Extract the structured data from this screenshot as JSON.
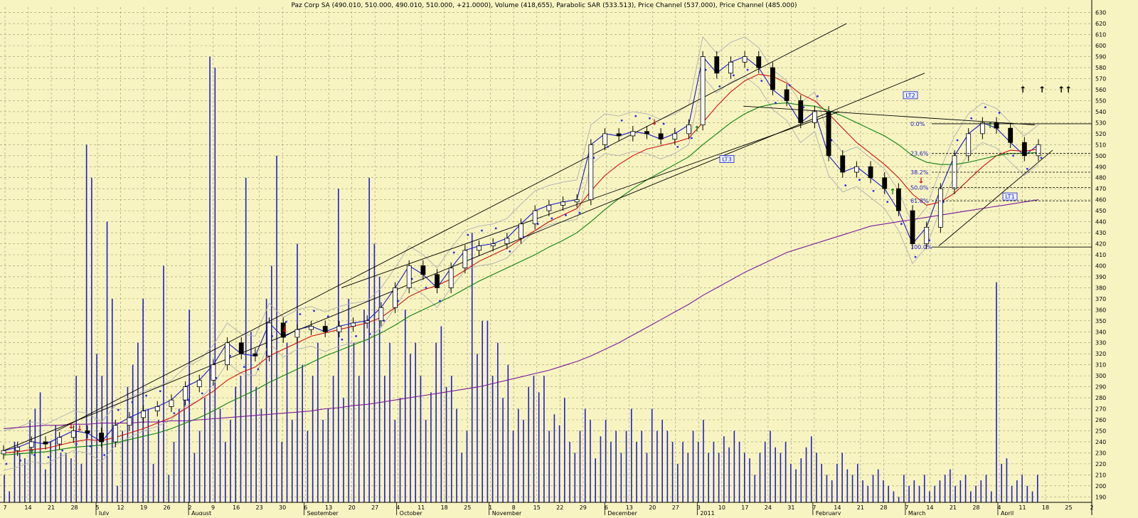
{
  "colors": {
    "background": "#f7f4c2",
    "grid": "#9a9a6a",
    "volume": "#2020c8",
    "price_line": "#1a1ac8",
    "ma_short": "#d01010",
    "ma_mid": "#108010",
    "ma_long": "#7a1a9a",
    "sar": "#2a2ae8",
    "channel": "#b0b0b0",
    "candle": "#000000",
    "signal_up": "#108010",
    "signal_down": "#d01010"
  },
  "chart_data": {
    "type": "candlestick",
    "title": "Paz Corp SA (490.010, 510.000, 490.010, 510.000, +21.0000), Volume (418,655), Parabolic SAR (533.513), Price Channel (537.000), Price Channel (485.000)",
    "ylim": [
      185,
      635
    ],
    "y_ticks": [
      190,
      200,
      210,
      220,
      230,
      240,
      250,
      260,
      270,
      280,
      290,
      300,
      310,
      320,
      330,
      340,
      350,
      360,
      370,
      380,
      390,
      400,
      410,
      420,
      430,
      440,
      450,
      460,
      470,
      480,
      490,
      500,
      510,
      520,
      530,
      540,
      550,
      560,
      570,
      580,
      590,
      600,
      610,
      620,
      630
    ],
    "x_day_ticks": [
      "7",
      "14",
      "21",
      "28",
      "5",
      "12",
      "19",
      "26",
      "2",
      "9",
      "16",
      "23",
      "30",
      "6",
      "13",
      "20",
      "27",
      "4",
      "11",
      "18",
      "25",
      "1",
      "8",
      "15",
      "22",
      "29",
      "6",
      "13",
      "20",
      "27",
      "3",
      "10",
      "17",
      "24",
      "31",
      "7",
      "14",
      "21",
      "28",
      "7",
      "14",
      "21",
      "28",
      "4",
      "11",
      "18",
      "25",
      "2"
    ],
    "x_month_labels": [
      "July",
      "August",
      "September",
      "October",
      "November",
      "December",
      "2011",
      "February",
      "March",
      "April"
    ],
    "price_series": [
      {
        "name": "close",
        "values": [
          232,
          235,
          240,
          238,
          244,
          250,
          248,
          240,
          255,
          262,
          268,
          272,
          278,
          290,
          296,
          310,
          330,
          320,
          318,
          348,
          335,
          342,
          345,
          340,
          345,
          348,
          350,
          362,
          380,
          400,
          392,
          380,
          398,
          414,
          418,
          420,
          425,
          438,
          450,
          455,
          458,
          460,
          510,
          520,
          518,
          522,
          520,
          515,
          520,
          528,
          590,
          575,
          585,
          590,
          580,
          560,
          550,
          530,
          540,
          500,
          485,
          490,
          480,
          470,
          450,
          420,
          435,
          470,
          500,
          520,
          530,
          525,
          512,
          500,
          510
        ]
      },
      {
        "name": "ma_short",
        "values": [
          230,
          231,
          233,
          234,
          237,
          240,
          242,
          241,
          244,
          248,
          252,
          257,
          262,
          270,
          278,
          286,
          296,
          303,
          308,
          318,
          324,
          330,
          336,
          339,
          342,
          345,
          348,
          353,
          362,
          372,
          378,
          382,
          388,
          396,
          404,
          410,
          416,
          424,
          432,
          440,
          446,
          452,
          468,
          482,
          492,
          500,
          506,
          509,
          512,
          516,
          530,
          545,
          558,
          568,
          574,
          572,
          566,
          556,
          550,
          538,
          525,
          512,
          502,
          492,
          480,
          465,
          455,
          458,
          466,
          478,
          490,
          500,
          505,
          504,
          506
        ]
      },
      {
        "name": "ma_mid",
        "values": [
          228,
          229,
          230,
          231,
          233,
          235,
          236,
          237,
          239,
          242,
          245,
          248,
          252,
          257,
          262,
          268,
          275,
          281,
          287,
          294,
          300,
          306,
          312,
          318,
          323,
          328,
          333,
          339,
          346,
          354,
          360,
          366,
          372,
          379,
          386,
          392,
          398,
          404,
          410,
          417,
          423,
          430,
          440,
          451,
          461,
          470,
          478,
          485,
          492,
          499,
          510,
          520,
          530,
          538,
          544,
          547,
          548,
          546,
          545,
          541,
          536,
          530,
          524,
          518,
          510,
          500,
          494,
          492,
          492,
          494,
          497,
          500,
          502,
          502,
          503
        ]
      },
      {
        "name": "ma_long",
        "values": [
          252,
          253,
          254,
          255,
          255,
          256,
          256,
          257,
          257,
          257,
          258,
          258,
          259,
          259,
          260,
          261,
          262,
          263,
          264,
          265,
          266,
          267,
          268,
          270,
          271,
          273,
          274,
          276,
          278,
          280,
          282,
          284,
          286,
          288,
          290,
          293,
          296,
          299,
          302,
          305,
          309,
          313,
          318,
          324,
          330,
          337,
          344,
          351,
          358,
          365,
          373,
          380,
          387,
          394,
          400,
          406,
          412,
          416,
          420,
          424,
          428,
          432,
          436,
          438,
          440,
          442,
          444,
          446,
          448,
          450,
          452,
          454,
          456,
          458,
          460
        ]
      }
    ],
    "volume_scale_note": "",
    "volume_values": [
      210,
      195,
      240,
      230,
      225,
      260,
      270,
      285,
      215,
      240,
      255,
      230,
      230,
      225,
      300,
      220,
      510,
      480,
      320,
      300,
      440,
      370,
      200,
      250,
      290,
      310,
      330,
      370,
      270,
      220,
      260,
      400,
      210,
      240,
      270,
      285,
      360,
      230,
      250,
      280,
      590,
      580,
      270,
      240,
      260,
      290,
      300,
      480,
      340,
      290,
      270,
      370,
      400,
      500,
      240,
      330,
      260,
      420,
      310,
      250,
      300,
      330,
      260,
      270,
      300,
      470,
      280,
      370,
      330,
      300,
      360,
      480,
      420,
      390,
      300,
      330,
      260,
      280,
      360,
      320,
      330,
      300,
      260,
      285,
      330,
      345,
      290,
      300,
      270,
      230,
      250,
      430,
      320,
      350,
      350,
      300,
      330,
      280,
      310,
      250,
      270,
      260,
      290,
      300,
      285,
      300,
      250,
      265,
      255,
      280,
      240,
      230,
      250,
      270,
      260,
      225,
      245,
      260,
      240,
      250,
      230,
      250,
      270,
      240,
      250,
      230,
      270,
      250,
      260,
      250,
      240,
      220,
      240,
      230,
      250,
      240,
      260,
      230,
      240,
      230,
      245,
      235,
      250,
      240,
      230,
      225,
      210,
      230,
      240,
      250,
      235,
      230,
      240,
      220,
      215,
      225,
      235,
      245,
      230,
      220,
      210,
      205,
      220,
      230,
      215,
      210,
      220,
      205,
      200,
      210,
      215,
      205,
      200,
      195,
      190,
      210,
      200,
      205,
      200,
      210,
      195,
      200,
      205,
      210,
      215,
      200,
      205,
      210,
      195,
      200,
      205,
      210,
      195,
      385,
      220,
      225,
      200,
      205,
      210,
      200,
      195,
      210
    ]
  },
  "annotations": {
    "labels": [
      "LT2",
      "LT3",
      "LT1"
    ],
    "fib_levels": [
      "0.0%",
      "23.6%",
      "38.2%",
      "50.0%",
      "61.8%",
      "100.0%"
    ]
  }
}
